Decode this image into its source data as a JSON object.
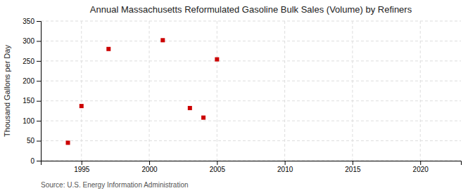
{
  "chart_data": {
    "type": "scatter",
    "title": "Annual Massachusetts Reformulated Gasoline Bulk Sales (Volume) by Refiners",
    "y_label": "Thousand Gallons per Day",
    "annotations": [
      "Source: U.S. Energy Information Administration"
    ],
    "x": [
      1994,
      1995,
      1997,
      2001,
      2003,
      2004,
      2005
    ],
    "values": [
      45,
      137,
      280,
      302,
      132,
      108,
      254
    ],
    "color": "#cc0000",
    "marker": "square",
    "xlim": [
      1992,
      2023
    ],
    "ylim": [
      0,
      350
    ],
    "xticks": [
      1995,
      2000,
      2005,
      2010,
      2015,
      2020
    ],
    "yticks": [
      0,
      50,
      100,
      150,
      200,
      250,
      300,
      350
    ],
    "grid": true
  }
}
